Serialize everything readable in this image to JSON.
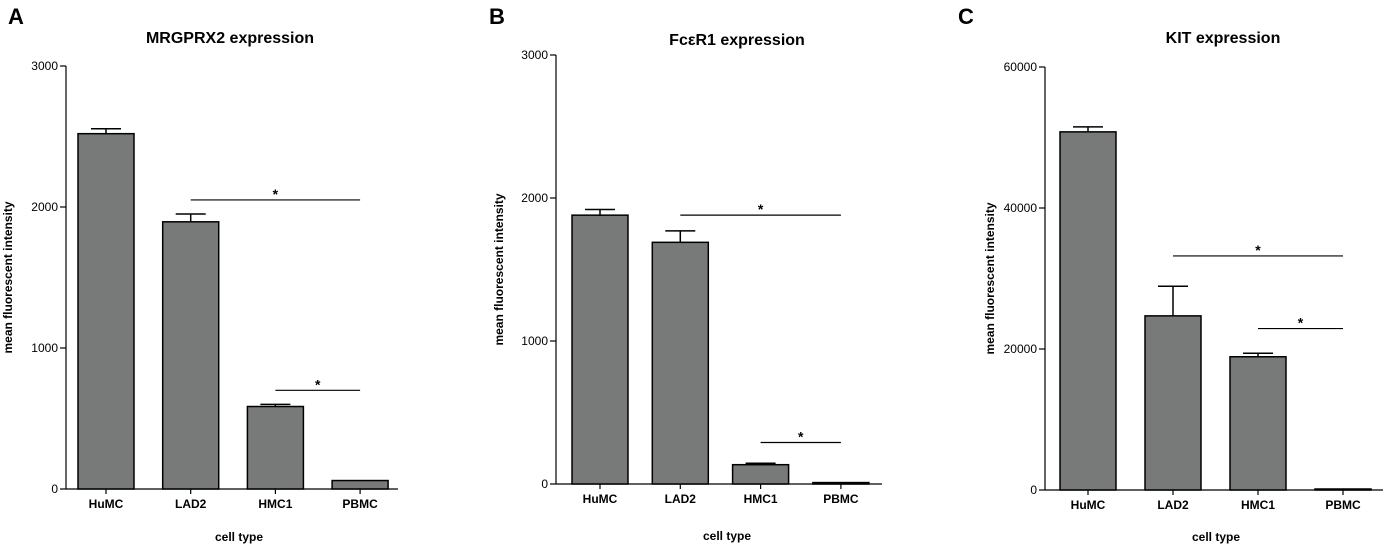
{
  "panels": [
    {
      "letter": "A",
      "chart_data": {
        "type": "bar",
        "title": "MRGPRX2 expression",
        "xlabel": "cell type",
        "ylabel": "mean fluorescent intensity",
        "categories": [
          "HuMC",
          "LAD2",
          "HMC1",
          "PBMC"
        ],
        "values": [
          2520,
          1895,
          585,
          60
        ],
        "error": [
          35,
          55,
          15,
          0
        ],
        "ylim": [
          0,
          3000
        ],
        "yticks": [
          0,
          1000,
          2000,
          3000
        ],
        "ytick_labels": [
          "0",
          "1000",
          "2000",
          "3000"
        ],
        "bar_color": "#787a7a",
        "significance": [
          {
            "from": 1,
            "to": 3,
            "y": 2050,
            "label": "*"
          },
          {
            "from": 2,
            "to": 3,
            "y": 700,
            "label": "*"
          }
        ]
      }
    },
    {
      "letter": "B",
      "chart_data": {
        "type": "bar",
        "title": "FcεR1 expression",
        "xlabel": "cell type",
        "ylabel": "mean fluorescent intensity",
        "categories": [
          "HuMC",
          "LAD2",
          "HMC1",
          "PBMC"
        ],
        "values": [
          1880,
          1690,
          135,
          10
        ],
        "error": [
          40,
          80,
          10,
          0
        ],
        "ylim": [
          0,
          3000
        ],
        "yticks": [
          0,
          1000,
          2000,
          3000
        ],
        "ytick_labels": [
          "0",
          "1000",
          "2000",
          "3000"
        ],
        "bar_color": "#787a7a",
        "significance": [
          {
            "from": 1,
            "to": 3,
            "y": 1880,
            "label": "*"
          },
          {
            "from": 2,
            "to": 3,
            "y": 290,
            "label": "*"
          }
        ]
      }
    },
    {
      "letter": "C",
      "chart_data": {
        "type": "bar",
        "title": "KIT expression",
        "xlabel": "cell type",
        "ylabel": "mean fluorescent intensity",
        "categories": [
          "HuMC",
          "LAD2",
          "HMC1",
          "PBMC"
        ],
        "values": [
          50800,
          24700,
          18900,
          100
        ],
        "error": [
          700,
          4200,
          500,
          0
        ],
        "ylim": [
          0,
          60000
        ],
        "yticks": [
          0,
          20000,
          40000,
          60000
        ],
        "ytick_labels": [
          "0",
          "20000",
          "40000",
          "60000"
        ],
        "bar_color": "#787a7a",
        "significance": [
          {
            "from": 1,
            "to": 3,
            "y": 33200,
            "label": "*"
          },
          {
            "from": 2,
            "to": 3,
            "y": 22900,
            "label": "*"
          }
        ]
      }
    }
  ]
}
